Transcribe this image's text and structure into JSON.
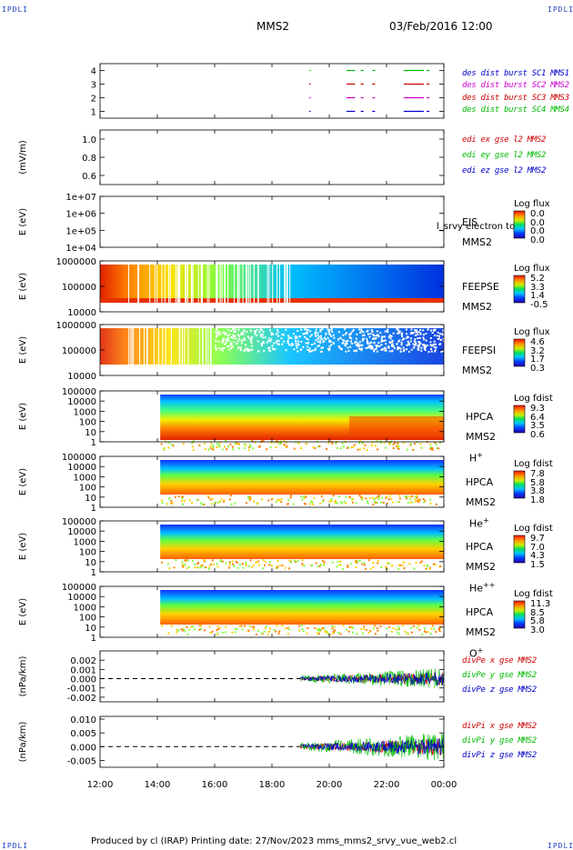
{
  "header": {
    "corner_left_top": "IPDLI",
    "corner_right_top": "IPDLI",
    "mission": "MMS2",
    "datetime": "03/Feb/2016 12:00"
  },
  "footer": {
    "text": "Produced by cl (IRAP)   Printing date: 27/Nov/2023   mms_mms2_srvy_vue_web2.cl",
    "corner_left_bottom": "IPDLI",
    "corner_right_bottom": "IPDLI"
  },
  "chart_data": {
    "type": "stacked-panels",
    "xaxis": {
      "ticks": [
        "12:00",
        "14:00",
        "16:00",
        "18:00",
        "20:00",
        "22:00",
        "00:00"
      ],
      "range_hours": [
        12,
        24
      ]
    },
    "panels": [
      {
        "id": "burst",
        "type": "timeline",
        "ylabel": "",
        "yticks": [
          "4",
          "3",
          "2",
          "1"
        ],
        "ylim": [
          0.5,
          4.5
        ],
        "legend": [
          {
            "text": "des dist burst SC1 MMS1",
            "color": "#0000cc"
          },
          {
            "text": "des dist burst SC2 MMS2",
            "color": "#cc00cc"
          },
          {
            "text": "des dist burst SC3 MMS3",
            "color": "#cc0000"
          },
          {
            "text": "des dist burst SC4 MMS4",
            "color": "#00bb00"
          }
        ],
        "segments": [
          [
            19.3,
            19.35
          ],
          [
            20.6,
            20.9
          ],
          [
            21.1,
            21.2
          ],
          [
            21.5,
            21.6
          ],
          [
            22.6,
            23.3
          ],
          [
            23.4,
            23.5
          ]
        ]
      },
      {
        "id": "edi",
        "type": "line",
        "ylabel": "(mV/m)",
        "yticks": [
          "1.0",
          "0.8",
          "0.6"
        ],
        "ylim": [
          0.5,
          1.1
        ],
        "legend": [
          {
            "text": "edi ex gse l2 MMS2",
            "color": "#cc0000"
          },
          {
            "text": "edi ey gse l2 MMS2",
            "color": "#00bb00"
          },
          {
            "text": "edi ez gse l2 MMS2",
            "color": "#0000cc"
          }
        ]
      },
      {
        "id": "eis",
        "type": "spectrogram",
        "ylabel": "E (eV)",
        "yticks": [
          "1e+07",
          "1e+06",
          "1e+05",
          "1e+04"
        ],
        "right_labels": [
          "EIS",
          "MMS2"
        ],
        "overlay_text": "l_srvy electron to",
        "colorbar": {
          "title": "Log flux",
          "values": [
            "0.0",
            "0.0",
            "0.0",
            "0.0"
          ]
        }
      },
      {
        "id": "feepse",
        "type": "spectrogram",
        "ylabel": "E (eV)",
        "yticks": [
          "1000000",
          "100000",
          "10000"
        ],
        "right_labels": [
          "FEEPSE",
          "MMS2"
        ],
        "colorbar": {
          "title": "Log flux",
          "values": [
            "5.2",
            "3.3",
            "1.4",
            "-0.5"
          ]
        }
      },
      {
        "id": "feepsi",
        "type": "spectrogram",
        "ylabel": "E (eV)",
        "yticks": [
          "1000000",
          "100000",
          "10000"
        ],
        "right_labels": [
          "FEEPSI",
          "MMS2"
        ],
        "colorbar": {
          "title": "Log flux",
          "values": [
            "4.6",
            "3.2",
            "1.7",
            "0.3"
          ]
        }
      },
      {
        "id": "hpca_h",
        "type": "spectrogram",
        "ylabel": "E (eV)",
        "yticks": [
          "100000",
          "10000",
          "1000",
          "100",
          "10",
          "1"
        ],
        "right_labels": [
          "HPCA",
          "MMS2",
          "H+"
        ],
        "colorbar": {
          "title": "Log fdist",
          "values": [
            "9.3",
            "6.4",
            "3.5",
            "0.6"
          ]
        }
      },
      {
        "id": "hpca_he",
        "type": "spectrogram",
        "ylabel": "E (eV)",
        "yticks": [
          "100000",
          "10000",
          "1000",
          "100",
          "10",
          "1"
        ],
        "right_labels": [
          "HPCA",
          "MMS2",
          "He+"
        ],
        "colorbar": {
          "title": "Log fdist",
          "values": [
            "7.8",
            "5.8",
            "3.8",
            "1.8"
          ]
        }
      },
      {
        "id": "hpca_hepp",
        "type": "spectrogram",
        "ylabel": "E (eV)",
        "yticks": [
          "100000",
          "10000",
          "1000",
          "100",
          "10",
          "1"
        ],
        "right_labels": [
          "HPCA",
          "MMS2",
          "He++"
        ],
        "colorbar": {
          "title": "Log fdist",
          "values": [
            "9.7",
            "7.0",
            "4.3",
            "1.5"
          ]
        }
      },
      {
        "id": "hpca_o",
        "type": "spectrogram",
        "ylabel": "E (eV)",
        "yticks": [
          "100000",
          "10000",
          "1000",
          "100",
          "10",
          "1"
        ],
        "right_labels": [
          "HPCA",
          "MMS2",
          "O+"
        ],
        "colorbar": {
          "title": "Log fdist",
          "values": [
            "11.3",
            "8.5",
            "5.8",
            "3.0"
          ]
        }
      },
      {
        "id": "divpe",
        "type": "line",
        "ylabel": "(nPa/km)",
        "yticks": [
          "0.002",
          "0.001",
          "0.000",
          "-0.001",
          "-0.002"
        ],
        "ylim": [
          -0.0025,
          0.003
        ],
        "legend": [
          {
            "text": "divPe x gse MMS2",
            "color": "#cc0000"
          },
          {
            "text": "divPe y gse MMS2",
            "color": "#00bb00"
          },
          {
            "text": "divPe z gse MMS2",
            "color": "#0000cc"
          }
        ]
      },
      {
        "id": "divpi",
        "type": "line",
        "ylabel": "(nPa/km)",
        "yticks": [
          "0.010",
          "0.005",
          "0.000",
          "-0.005"
        ],
        "ylim": [
          -0.0075,
          0.011
        ],
        "legend": [
          {
            "text": "divPi x gse MMS2",
            "color": "#cc0000"
          },
          {
            "text": "divPi y gse MMS2",
            "color": "#00bb00"
          },
          {
            "text": "divPi z gse MMS2",
            "color": "#0000cc"
          }
        ]
      }
    ]
  }
}
